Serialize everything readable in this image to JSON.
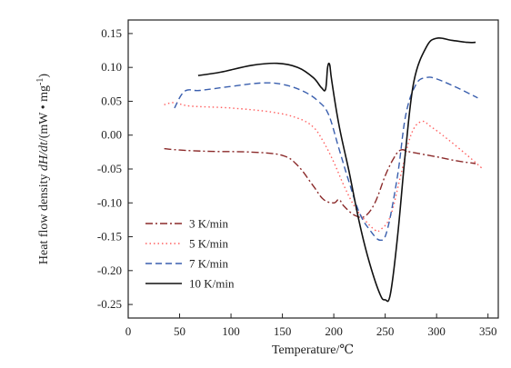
{
  "chart_data": {
    "type": "line",
    "xlabel": "Temperature/℃",
    "ylabel_prefix": "Heat flow density ",
    "ylabel_italic": "dH/dt",
    "ylabel_suffix": "/(mW • mg",
    "ylabel_sup": "-1",
    "ylabel_end": ")",
    "xlim": [
      0,
      360
    ],
    "ylim": [
      -0.27,
      0.17
    ],
    "xticks": [
      0,
      50,
      100,
      150,
      200,
      250,
      300,
      350
    ],
    "yticks": [
      -0.25,
      -0.2,
      -0.15,
      -0.1,
      -0.05,
      0.0,
      0.05,
      0.1,
      0.15
    ],
    "ytick_labels": [
      "-0.25",
      "-0.20",
      "-0.15",
      "-0.10",
      "-0.05",
      "0.00",
      "0.05",
      "0.10",
      "0.15"
    ],
    "grid": false,
    "legend_position": "bottom-left",
    "series": [
      {
        "name": "3 K/min",
        "color": "#8b2a2a",
        "dash": "dashdot",
        "points": [
          [
            35,
            -0.02
          ],
          [
            50,
            -0.022
          ],
          [
            80,
            -0.024
          ],
          [
            120,
            -0.025
          ],
          [
            150,
            -0.03
          ],
          [
            165,
            -0.045
          ],
          [
            180,
            -0.075
          ],
          [
            190,
            -0.095
          ],
          [
            200,
            -0.1
          ],
          [
            205,
            -0.095
          ],
          [
            210,
            -0.105
          ],
          [
            220,
            -0.118
          ],
          [
            230,
            -0.12
          ],
          [
            240,
            -0.1
          ],
          [
            250,
            -0.06
          ],
          [
            258,
            -0.035
          ],
          [
            265,
            -0.022
          ],
          [
            275,
            -0.025
          ],
          [
            300,
            -0.032
          ],
          [
            320,
            -0.038
          ],
          [
            338,
            -0.042
          ]
        ]
      },
      {
        "name": "5 K/min",
        "color": "#ff6060",
        "dash": "dotted",
        "points": [
          [
            35,
            0.045
          ],
          [
            45,
            0.048
          ],
          [
            60,
            0.043
          ],
          [
            100,
            0.04
          ],
          [
            140,
            0.034
          ],
          [
            165,
            0.025
          ],
          [
            180,
            0.012
          ],
          [
            190,
            -0.01
          ],
          [
            200,
            -0.04
          ],
          [
            210,
            -0.075
          ],
          [
            220,
            -0.105
          ],
          [
            230,
            -0.125
          ],
          [
            240,
            -0.14
          ],
          [
            245,
            -0.14
          ],
          [
            255,
            -0.12
          ],
          [
            265,
            -0.06
          ],
          [
            275,
            0.0
          ],
          [
            285,
            0.02
          ],
          [
            295,
            0.012
          ],
          [
            310,
            -0.005
          ],
          [
            330,
            -0.03
          ],
          [
            345,
            -0.05
          ]
        ]
      },
      {
        "name": "7 K/min",
        "color": "#3a5fae",
        "dash": "dashed",
        "points": [
          [
            45,
            0.04
          ],
          [
            55,
            0.065
          ],
          [
            70,
            0.066
          ],
          [
            100,
            0.072
          ],
          [
            130,
            0.077
          ],
          [
            150,
            0.075
          ],
          [
            170,
            0.065
          ],
          [
            185,
            0.05
          ],
          [
            195,
            0.03
          ],
          [
            205,
            -0.02
          ],
          [
            215,
            -0.07
          ],
          [
            225,
            -0.115
          ],
          [
            235,
            -0.14
          ],
          [
            245,
            -0.155
          ],
          [
            252,
            -0.14
          ],
          [
            262,
            -0.06
          ],
          [
            270,
            0.03
          ],
          [
            280,
            0.075
          ],
          [
            290,
            0.085
          ],
          [
            300,
            0.083
          ],
          [
            320,
            0.07
          ],
          [
            340,
            0.055
          ]
        ]
      },
      {
        "name": "10 K/min",
        "color": "#111111",
        "dash": "solid",
        "points": [
          [
            68,
            0.088
          ],
          [
            90,
            0.093
          ],
          [
            120,
            0.103
          ],
          [
            145,
            0.106
          ],
          [
            165,
            0.1
          ],
          [
            180,
            0.085
          ],
          [
            188,
            0.07
          ],
          [
            192,
            0.068
          ],
          [
            194,
            0.1
          ],
          [
            196,
            0.104
          ],
          [
            198,
            0.08
          ],
          [
            205,
            0.015
          ],
          [
            215,
            -0.055
          ],
          [
            225,
            -0.13
          ],
          [
            235,
            -0.19
          ],
          [
            245,
            -0.235
          ],
          [
            250,
            -0.243
          ],
          [
            255,
            -0.235
          ],
          [
            262,
            -0.15
          ],
          [
            270,
            -0.02
          ],
          [
            278,
            0.08
          ],
          [
            290,
            0.13
          ],
          [
            300,
            0.143
          ],
          [
            315,
            0.14
          ],
          [
            330,
            0.137
          ],
          [
            338,
            0.137
          ]
        ]
      }
    ]
  }
}
